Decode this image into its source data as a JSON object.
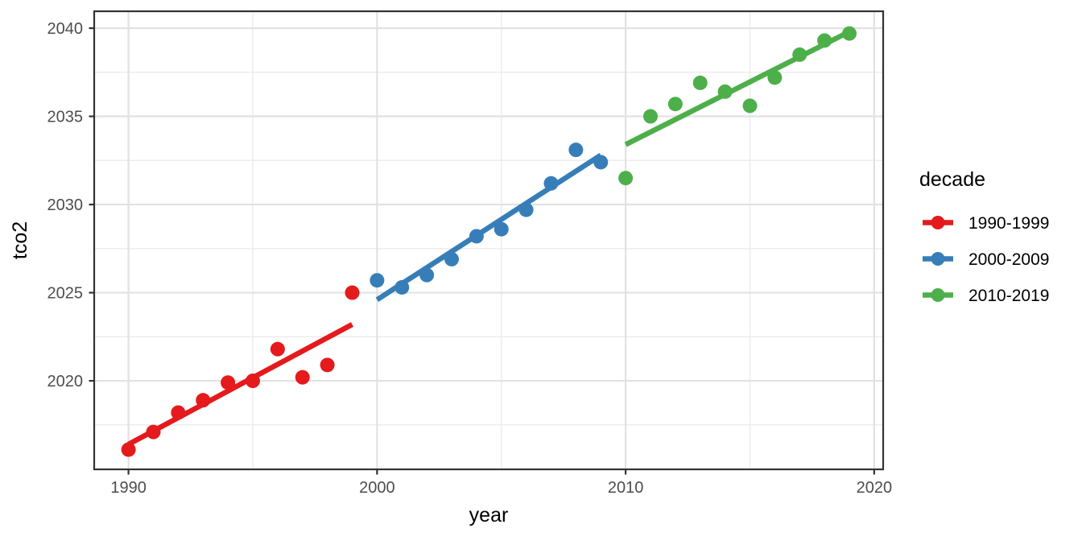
{
  "chart_data": {
    "type": "scatter",
    "title": "",
    "xlabel": "year",
    "ylabel": "tco2",
    "xlim": [
      1988.62,
      2020.36
    ],
    "ylim": [
      2014.98,
      2040.96
    ],
    "x_ticks": {
      "values": [
        1990,
        2000,
        2010,
        2020
      ],
      "labels": [
        "1990",
        "2000",
        "2010",
        "2020"
      ]
    },
    "y_ticks": {
      "values": [
        2020,
        2025,
        2030,
        2035,
        2040
      ],
      "labels": [
        "2020",
        "2025",
        "2030",
        "2035",
        "2040"
      ]
    },
    "x_minor": [
      1995,
      2005,
      2015
    ],
    "y_minor": [
      2017.5,
      2022.5,
      2027.5,
      2032.5,
      2037.5
    ],
    "grid": "major+minor",
    "legend": {
      "title": "decade",
      "position": "right",
      "entries": [
        "1990-1999",
        "2000-2009",
        "2010-2019"
      ]
    },
    "series": [
      {
        "name": "1990-1999",
        "color": "#E41A1C",
        "x": [
          1990,
          1991,
          1992,
          1993,
          1994,
          1995,
          1996,
          1997,
          1998,
          1999
        ],
        "y": [
          2016.1,
          2017.1,
          2018.2,
          2018.9,
          2019.9,
          2020.0,
          2021.8,
          2020.2,
          2020.9,
          2025.0
        ],
        "trend": {
          "x": [
            1990,
            1999
          ],
          "y": [
            2016.4,
            2023.2
          ]
        }
      },
      {
        "name": "2000-2009",
        "color": "#377EB8",
        "x": [
          2000,
          2001,
          2002,
          2003,
          2004,
          2005,
          2006,
          2007,
          2008,
          2009
        ],
        "y": [
          2025.7,
          2025.3,
          2026.0,
          2026.9,
          2028.2,
          2028.6,
          2029.7,
          2031.2,
          2033.1,
          2032.4
        ],
        "trend": {
          "x": [
            2000,
            2009
          ],
          "y": [
            2024.6,
            2032.8
          ]
        }
      },
      {
        "name": "2010-2019",
        "color": "#4DAF4A",
        "x": [
          2010,
          2011,
          2012,
          2013,
          2014,
          2015,
          2016,
          2017,
          2018,
          2019
        ],
        "y": [
          2031.5,
          2035.0,
          2035.7,
          2036.9,
          2036.4,
          2035.6,
          2037.2,
          2038.5,
          2039.3,
          2039.7
        ],
        "trend": {
          "x": [
            2010,
            2019
          ],
          "y": [
            2033.4,
            2039.8
          ]
        }
      }
    ],
    "style": {
      "background": "#FFFFFF",
      "panel_fill": "#FFFFFF",
      "panel_border": "#333333",
      "grid_major": "#E2E2E2",
      "grid_minor": "#EDEDED",
      "tick_color": "#333333",
      "tick_label_color": "#4D4D4D",
      "axis_title_color": "#000000",
      "legend_text_color": "#000000",
      "point_radius": 9,
      "line_width": 6.5
    }
  }
}
